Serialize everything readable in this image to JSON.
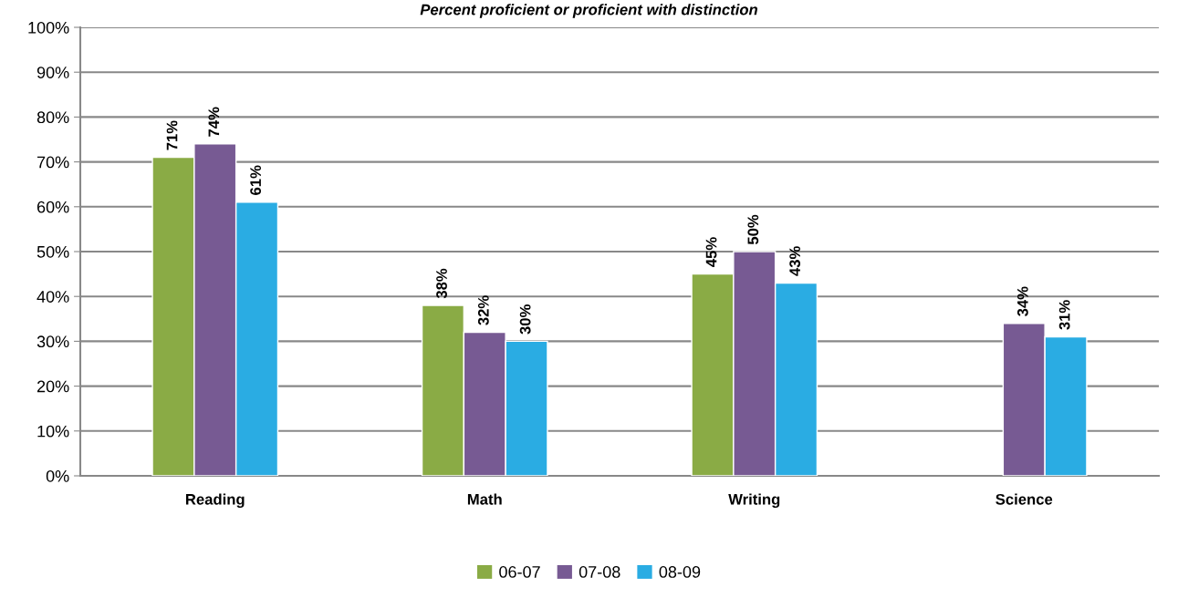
{
  "chart_data": {
    "type": "bar",
    "title": "Percent proficient or proficient with distinction",
    "categories": [
      "Reading",
      "Math",
      "Writing",
      "Science"
    ],
    "series": [
      {
        "name": "06-07",
        "color": "#8aab45",
        "values": [
          71,
          38,
          45,
          null
        ],
        "value_labels": [
          "71%",
          "38%",
          "45%",
          null
        ]
      },
      {
        "name": "07-08",
        "color": "#775a93",
        "values": [
          74,
          32,
          50,
          34
        ],
        "value_labels": [
          "74%",
          "32%",
          "50%",
          "34%"
        ]
      },
      {
        "name": "08-09",
        "color": "#2aace3",
        "values": [
          61,
          30,
          43,
          31
        ],
        "value_labels": [
          "61%",
          "30%",
          "43%",
          "31%"
        ]
      }
    ],
    "ylim": [
      0,
      100
    ],
    "yticks": [
      {
        "value": 0,
        "label": "0%"
      },
      {
        "value": 10,
        "label": "10%"
      },
      {
        "value": 20,
        "label": "20%"
      },
      {
        "value": 30,
        "label": "30%"
      },
      {
        "value": 40,
        "label": "40%"
      },
      {
        "value": 50,
        "label": "50%"
      },
      {
        "value": 60,
        "label": "60%"
      },
      {
        "value": 70,
        "label": "70%"
      },
      {
        "value": 80,
        "label": "80%"
      },
      {
        "value": 90,
        "label": "90%"
      },
      {
        "value": 100,
        "label": "100%"
      }
    ],
    "grid": "y",
    "legend": "bottom"
  }
}
